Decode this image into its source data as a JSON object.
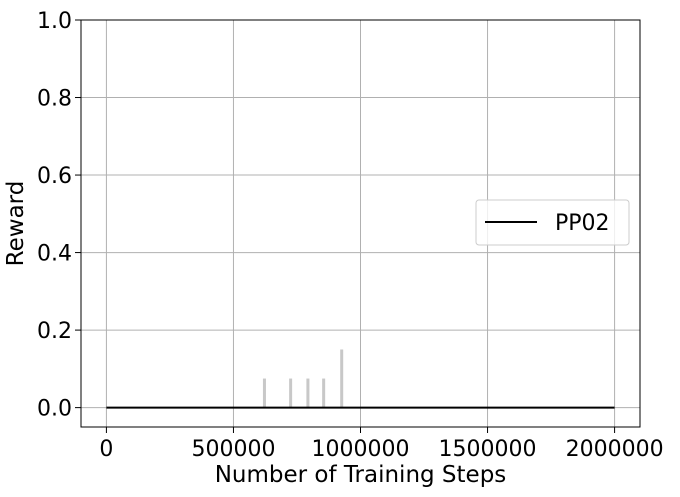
{
  "chart_data": {
    "type": "line",
    "title": "",
    "xlabel": "Number of Training Steps",
    "ylabel": "Reward",
    "xlim": [
      -100000,
      2100000
    ],
    "ylim": [
      -0.05,
      1.0
    ],
    "xticks": [
      0,
      500000,
      1000000,
      1500000,
      2000000
    ],
    "xtick_labels": [
      "0",
      "500000",
      "1000000",
      "1500000",
      "2000000"
    ],
    "yticks": [
      0.0,
      0.2,
      0.4,
      0.6,
      0.8,
      1.0
    ],
    "ytick_labels": [
      "0.0",
      "0.2",
      "0.4",
      "0.6",
      "0.8",
      "1.0"
    ],
    "grid": true,
    "legend": {
      "position": "center-right",
      "entries": [
        "PP02"
      ]
    },
    "series": [
      {
        "name": "PP02",
        "color": "#000000",
        "x": [
          0,
          2000000
        ],
        "y": [
          0.0,
          0.0
        ]
      }
    ],
    "spikes": {
      "color": "#c8c8c8",
      "points": [
        {
          "x": 622000,
          "y": 0.075
        },
        {
          "x": 725000,
          "y": 0.075
        },
        {
          "x": 793000,
          "y": 0.075
        },
        {
          "x": 855000,
          "y": 0.075
        },
        {
          "x": 926000,
          "y": 0.15
        }
      ]
    }
  }
}
